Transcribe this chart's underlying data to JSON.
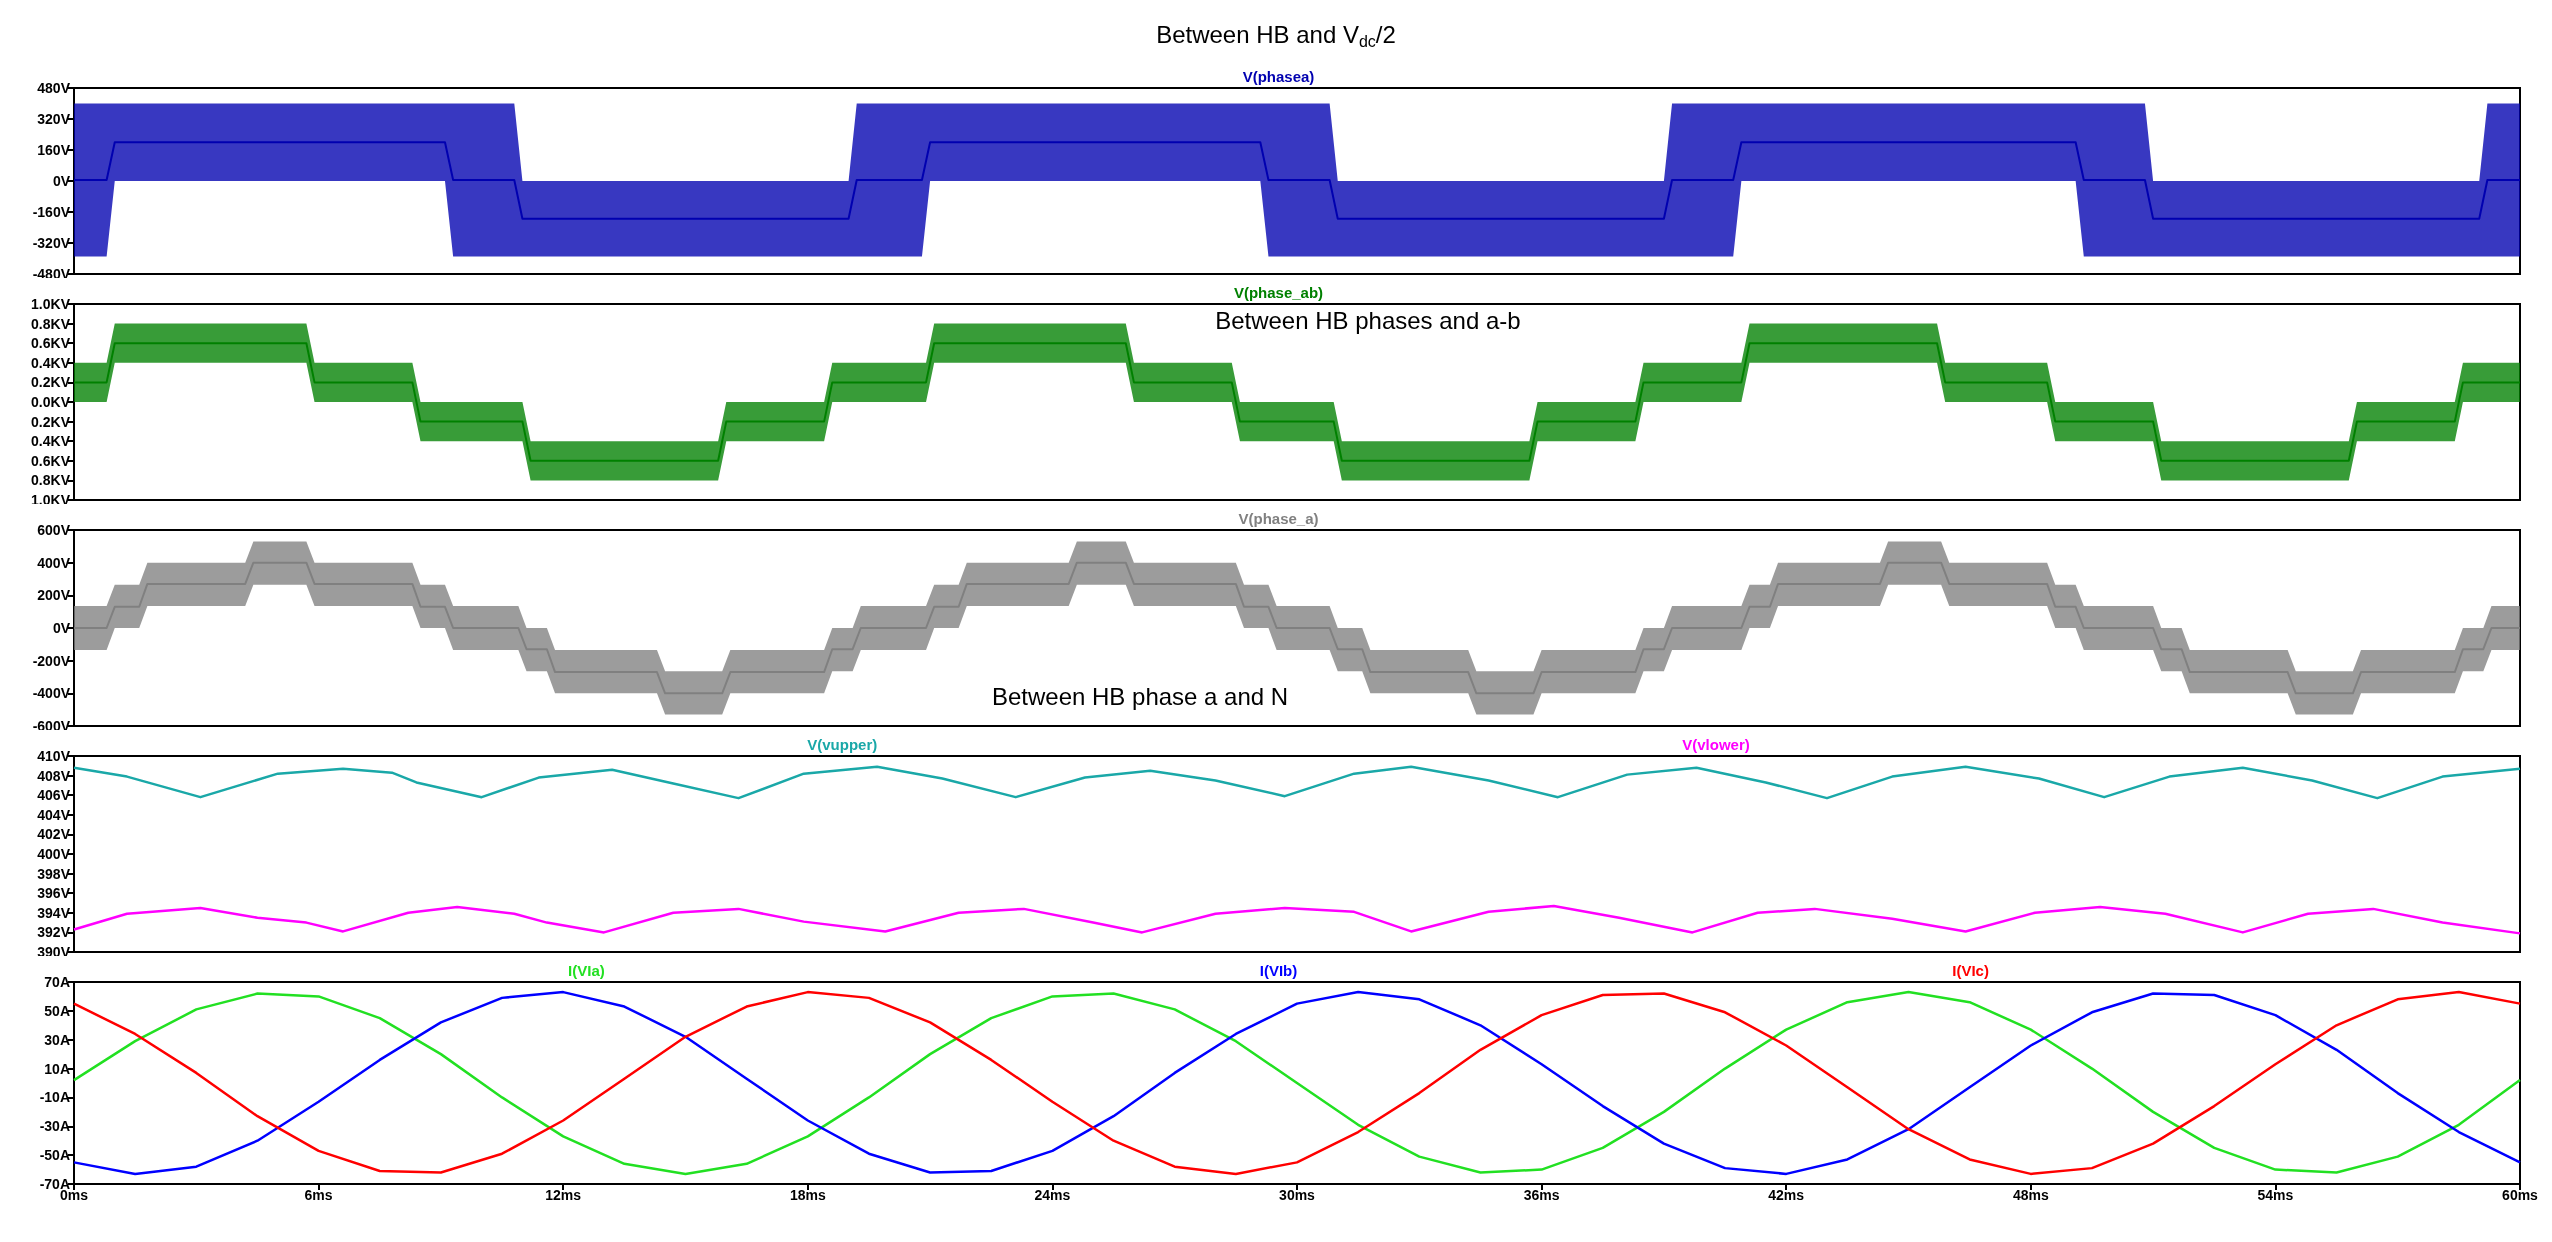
{
  "chart_data": [
    {
      "type": "line",
      "title": "Between HB and V$_{dc}$/2",
      "legend": "top",
      "tick_labels": "y",
      "xlim": [
        0,
        60
      ],
      "ylim": [
        -480,
        480
      ],
      "yticks": [
        {
          "value": -480,
          "label": "-480V"
        },
        {
          "value": -320,
          "label": "-320V"
        },
        {
          "value": -160,
          "label": "-160V"
        },
        {
          "value": 0,
          "label": "0V"
        },
        {
          "value": 160,
          "label": "160V"
        },
        {
          "value": 320,
          "label": "320V"
        },
        {
          "value": 480,
          "label": "480V"
        }
      ],
      "x": [
        0,
        0.8,
        1.0,
        9.1,
        9.3,
        10.8,
        11.0,
        19.0,
        19.2,
        20.8,
        21.0,
        29.1,
        29.3,
        30.8,
        31.0,
        39.0,
        39.2,
        40.7,
        40.9,
        49.1,
        49.3,
        50.8,
        51.0,
        59.0,
        59.2,
        60
      ],
      "series": [
        {
          "name": "V(phasea)",
          "color": "#0000b0",
          "values": [
            5,
            5,
            200,
            200,
            5,
            5,
            -195,
            -195,
            5,
            5,
            200,
            200,
            5,
            5,
            -195,
            -195,
            5,
            5,
            200,
            200,
            5,
            5,
            -195,
            -195,
            5,
            5
          ],
          "lower": [
            -390,
            -390,
            0,
            0,
            -390,
            -390,
            -390,
            -390,
            -390,
            -390,
            0,
            0,
            -390,
            -390,
            -390,
            -390,
            -390,
            -390,
            0,
            0,
            -390,
            -390,
            -390,
            -390,
            -390,
            -390
          ],
          "upper": [
            400,
            400,
            400,
            400,
            400,
            400,
            0,
            0,
            400,
            400,
            400,
            400,
            400,
            400,
            0,
            0,
            400,
            400,
            400,
            400,
            400,
            400,
            0,
            0,
            400,
            400
          ]
        }
      ]
    },
    {
      "type": "line",
      "legend": "top",
      "tick_labels": "y",
      "xlim": [
        0,
        60
      ],
      "ylim": [
        -1,
        1
      ],
      "annotations": [
        "Between HB phases and a-b"
      ],
      "yticks": [
        {
          "value": -1,
          "label": "1.0KV"
        },
        {
          "value": -0.8,
          "label": "0.8KV"
        },
        {
          "value": -0.6,
          "label": "0.6KV"
        },
        {
          "value": -0.4,
          "label": "0.4KV"
        },
        {
          "value": -0.2,
          "label": "0.2KV"
        },
        {
          "value": 0,
          "label": "0.0KV"
        },
        {
          "value": 0.2,
          "label": "0.2KV"
        },
        {
          "value": 0.4,
          "label": "0.4KV"
        },
        {
          "value": 0.6,
          "label": "0.6KV"
        },
        {
          "value": 0.8,
          "label": "0.8KV"
        },
        {
          "value": 1,
          "label": "1.0KV"
        }
      ],
      "x": [
        0,
        0.8,
        1.0,
        5.7,
        5.9,
        8.3,
        8.5,
        11.0,
        11.2,
        15.8,
        16.0,
        18.4,
        18.6,
        20.9,
        21.1,
        25.8,
        26.0,
        28.4,
        28.6,
        30.9,
        31.1,
        35.7,
        35.9,
        38.3,
        38.5,
        40.9,
        41.1,
        45.7,
        45.9,
        48.4,
        48.6,
        51.0,
        51.2,
        55.8,
        56.0,
        58.4,
        58.6,
        60
      ],
      "series": [
        {
          "name": "V(phase_ab)",
          "color": "#008000",
          "values": [
            0.2,
            0.2,
            0.6,
            0.6,
            0.2,
            0.2,
            -0.2,
            -0.2,
            -0.6,
            -0.6,
            -0.2,
            -0.2,
            0.2,
            0.2,
            0.6,
            0.6,
            0.2,
            0.2,
            -0.2,
            -0.2,
            -0.6,
            -0.6,
            -0.2,
            -0.2,
            0.2,
            0.2,
            0.6,
            0.6,
            0.2,
            0.2,
            -0.2,
            -0.2,
            -0.6,
            -0.6,
            -0.2,
            -0.2,
            0.2,
            0.2
          ],
          "lower": [
            0,
            0,
            0.4,
            0.4,
            0,
            0,
            -0.4,
            -0.4,
            -0.8,
            -0.8,
            -0.4,
            -0.4,
            0,
            0,
            0.4,
            0.4,
            0,
            0,
            -0.4,
            -0.4,
            -0.8,
            -0.8,
            -0.4,
            -0.4,
            0,
            0,
            0.4,
            0.4,
            0,
            0,
            -0.4,
            -0.4,
            -0.8,
            -0.8,
            -0.4,
            -0.4,
            0,
            0
          ],
          "upper": [
            0.4,
            0.4,
            0.8,
            0.8,
            0.4,
            0.4,
            0,
            0,
            -0.4,
            -0.4,
            0,
            0,
            0.4,
            0.4,
            0.8,
            0.8,
            0.4,
            0.4,
            0,
            0,
            -0.4,
            -0.4,
            0,
            0,
            0.4,
            0.4,
            0.8,
            0.8,
            0.4,
            0.4,
            0,
            0,
            -0.4,
            -0.4,
            0,
            0,
            0.4,
            0.4
          ]
        }
      ]
    },
    {
      "type": "line",
      "legend": "top",
      "tick_labels": "y",
      "xlim": [
        0,
        60
      ],
      "ylim": [
        -600,
        600
      ],
      "annotations": [
        "Between HB phase a and N"
      ],
      "yticks": [
        {
          "value": -600,
          "label": "-600V"
        },
        {
          "value": -400,
          "label": "-400V"
        },
        {
          "value": -200,
          "label": "-200V"
        },
        {
          "value": 0,
          "label": "0V"
        },
        {
          "value": 200,
          "label": "200V"
        },
        {
          "value": 400,
          "label": "400V"
        },
        {
          "value": 600,
          "label": "600V"
        }
      ],
      "x": [
        0,
        0.8,
        1.0,
        1.6,
        1.8,
        4.2,
        4.4,
        5.7,
        5.9,
        8.3,
        8.5,
        9.1,
        9.3,
        10.9,
        11.1,
        11.6,
        11.8,
        14.3,
        14.5,
        15.9,
        16.1,
        18.4,
        18.6,
        19.1,
        19.3,
        20.9,
        21.1,
        21.7,
        21.9,
        24.4,
        24.6,
        25.8,
        26.0,
        28.5,
        28.7,
        29.3,
        29.5,
        30.8,
        31.0,
        31.6,
        31.8,
        34.2,
        34.4,
        35.8,
        36.0,
        38.3,
        38.5,
        39.0,
        39.2,
        40.9,
        41.1,
        41.6,
        41.8,
        44.3,
        44.5,
        45.8,
        46.0,
        48.4,
        48.6,
        49.1,
        49.3,
        51.0,
        51.2,
        51.7,
        51.9,
        54.3,
        54.5,
        55.9,
        56.1,
        58.4,
        58.6,
        59.1,
        59.3,
        60
      ],
      "series": [
        {
          "name": "V(phase_a)",
          "color": "#808080",
          "values": [
            0,
            0,
            130,
            130,
            270,
            270,
            400,
            400,
            270,
            270,
            130,
            130,
            0,
            0,
            -130,
            -130,
            -270,
            -270,
            -400,
            -400,
            -270,
            -270,
            -130,
            -130,
            0,
            0,
            130,
            130,
            270,
            270,
            400,
            400,
            270,
            270,
            130,
            130,
            0,
            0,
            -130,
            -130,
            -270,
            -270,
            -400,
            -400,
            -270,
            -270,
            -130,
            -130,
            0,
            0,
            130,
            130,
            270,
            270,
            400,
            400,
            270,
            270,
            130,
            130,
            0,
            0,
            -130,
            -130,
            -270,
            -270,
            -400,
            -400,
            -270,
            -270,
            -130,
            -130,
            0,
            0
          ],
          "lower": [
            -135,
            -135,
            0,
            0,
            135,
            135,
            265,
            265,
            135,
            135,
            0,
            0,
            -135,
            -135,
            -265,
            -265,
            -400,
            -400,
            -530,
            -530,
            -400,
            -400,
            -265,
            -265,
            -135,
            -135,
            0,
            0,
            135,
            135,
            265,
            265,
            135,
            135,
            0,
            0,
            -135,
            -135,
            -265,
            -265,
            -400,
            -400,
            -530,
            -530,
            -400,
            -400,
            -265,
            -265,
            -135,
            -135,
            0,
            0,
            135,
            135,
            265,
            265,
            135,
            135,
            0,
            0,
            -135,
            -135,
            -265,
            -265,
            -400,
            -400,
            -530,
            -530,
            -400,
            -400,
            -265,
            -265,
            -135,
            -135
          ],
          "upper": [
            135,
            135,
            265,
            265,
            400,
            400,
            530,
            530,
            400,
            400,
            265,
            265,
            135,
            135,
            0,
            0,
            -135,
            -135,
            -265,
            -265,
            -135,
            -135,
            0,
            0,
            135,
            135,
            265,
            265,
            400,
            400,
            530,
            530,
            400,
            400,
            265,
            265,
            135,
            135,
            0,
            0,
            -135,
            -135,
            -265,
            -265,
            -135,
            -135,
            0,
            0,
            135,
            135,
            265,
            265,
            400,
            400,
            530,
            530,
            400,
            400,
            265,
            265,
            135,
            135,
            0,
            0,
            -135,
            -135,
            -265,
            -265,
            -135,
            -135,
            0,
            0,
            135,
            135
          ]
        }
      ]
    },
    {
      "type": "line",
      "legend": "top",
      "tick_labels": "y",
      "xlim": [
        0,
        60
      ],
      "ylim": [
        390,
        410
      ],
      "yticks": [
        {
          "value": 390,
          "label": "390V"
        },
        {
          "value": 392,
          "label": "392V"
        },
        {
          "value": 394,
          "label": "394V"
        },
        {
          "value": 396,
          "label": "396V"
        },
        {
          "value": 398,
          "label": "398V"
        },
        {
          "value": 400,
          "label": "400V"
        },
        {
          "value": 402,
          "label": "402V"
        },
        {
          "value": 404,
          "label": "404V"
        },
        {
          "value": 406,
          "label": "406V"
        },
        {
          "value": 408,
          "label": "408V"
        },
        {
          "value": 410,
          "label": "410V"
        }
      ],
      "series": [
        {
          "name": "V(vupper)",
          "color": "#1aa8a8",
          "x": [
            0,
            1.3,
            3.1,
            5.0,
            6.6,
            7.8,
            8.4,
            10.0,
            11.4,
            13.2,
            14.7,
            16.3,
            17.9,
            19.7,
            21.3,
            23.1,
            24.8,
            26.4,
            28.0,
            29.7,
            31.4,
            32.8,
            34.7,
            36.4,
            38.1,
            39.8,
            41.5,
            43.0,
            44.6,
            46.4,
            48.2,
            49.8,
            51.4,
            53.2,
            54.9,
            56.5,
            58.1,
            60
          ],
          "values": [
            408.8,
            407.9,
            405.8,
            408.2,
            408.7,
            408.3,
            407.3,
            405.8,
            407.8,
            408.6,
            407.2,
            405.7,
            408.2,
            408.9,
            407.7,
            405.8,
            407.8,
            408.5,
            407.5,
            405.9,
            408.2,
            408.9,
            407.5,
            405.8,
            408.1,
            408.8,
            407.3,
            405.7,
            407.9,
            408.9,
            407.7,
            405.8,
            407.9,
            408.8,
            407.5,
            405.7,
            407.9,
            408.7
          ]
        },
        {
          "name": "V(vlower)",
          "color": "#ff00ff",
          "x": [
            0,
            1.3,
            3.1,
            4.5,
            5.7,
            6.6,
            8.2,
            9.4,
            10.8,
            11.6,
            13.0,
            14.7,
            16.3,
            17.9,
            19.9,
            21.7,
            23.3,
            25.0,
            26.2,
            28.0,
            29.7,
            31.4,
            32.8,
            34.7,
            36.3,
            37.9,
            39.7,
            41.3,
            42.7,
            44.6,
            46.4,
            48.1,
            49.7,
            51.3,
            53.2,
            54.8,
            56.4,
            58.1,
            60
          ],
          "values": [
            392.3,
            393.9,
            394.5,
            393.5,
            393.0,
            392.1,
            394.0,
            394.6,
            393.9,
            393.0,
            392.0,
            394.0,
            394.4,
            393.1,
            392.1,
            394.0,
            394.4,
            393.0,
            392.0,
            393.9,
            394.5,
            394.1,
            392.1,
            394.1,
            394.7,
            393.5,
            392.0,
            394.0,
            394.4,
            393.4,
            392.1,
            394.0,
            394.6,
            393.9,
            392.0,
            393.9,
            394.4,
            393.0,
            391.9
          ]
        }
      ]
    },
    {
      "type": "line",
      "legend": "top",
      "xlim": [
        0,
        60
      ],
      "ylim": [
        -70,
        70
      ],
      "xticks": [
        {
          "value": 0,
          "label": "0ms"
        },
        {
          "value": 6,
          "label": "6ms"
        },
        {
          "value": 12,
          "label": "12ms"
        },
        {
          "value": 18,
          "label": "18ms"
        },
        {
          "value": 24,
          "label": "24ms"
        },
        {
          "value": 30,
          "label": "30ms"
        },
        {
          "value": 36,
          "label": "36ms"
        },
        {
          "value": 42,
          "label": "42ms"
        },
        {
          "value": 48,
          "label": "48ms"
        },
        {
          "value": 54,
          "label": "54ms"
        },
        {
          "value": 60,
          "label": "60ms"
        }
      ],
      "yticks": [
        {
          "value": -70,
          "label": "-70A"
        },
        {
          "value": -50,
          "label": "-50A"
        },
        {
          "value": -30,
          "label": "-30A"
        },
        {
          "value": -10,
          "label": "-10A"
        },
        {
          "value": 10,
          "label": "10A"
        },
        {
          "value": 30,
          "label": "30A"
        },
        {
          "value": 50,
          "label": "50A"
        },
        {
          "value": 70,
          "label": "70A"
        }
      ],
      "x": [
        0,
        1.5,
        3,
        4.5,
        6,
        7.5,
        9,
        10.5,
        12,
        13.5,
        15,
        16.5,
        18,
        19.5,
        21,
        22.5,
        24,
        25.5,
        27,
        28.5,
        30,
        31.5,
        33,
        34.5,
        36,
        37.5,
        39,
        40.5,
        42,
        43.5,
        45,
        46.5,
        48,
        49.5,
        51,
        52.5,
        54,
        55.5,
        57,
        58.5,
        60
      ],
      "series": [
        {
          "name": "I(VIa)",
          "color": "#22e022",
          "values": [
            2,
            29,
            51,
            62,
            60,
            45,
            20,
            -10,
            -37,
            -56,
            -63,
            -56,
            -37,
            -10,
            20,
            45,
            60,
            62,
            51,
            29,
            0,
            -29,
            -51,
            -62,
            -60,
            -45,
            -20,
            10,
            37,
            56,
            63,
            56,
            37,
            10,
            -20,
            -45,
            -60,
            -62,
            -51,
            -29,
            2
          ]
        },
        {
          "name": "I(VIb)",
          "color": "#0000ff",
          "values": [
            -55,
            -63,
            -58,
            -40,
            -13,
            16,
            42,
            59,
            63,
            53,
            32,
            3,
            -26,
            -49,
            -62,
            -61,
            -47,
            -23,
            7,
            34,
            55,
            63,
            58,
            40,
            13,
            -16,
            -42,
            -59,
            -63,
            -53,
            -32,
            -3,
            26,
            49,
            62,
            61,
            47,
            23,
            -7,
            -34,
            -55
          ]
        },
        {
          "name": "I(VIc)",
          "color": "#ff0000",
          "values": [
            55,
            34,
            7,
            -23,
            -47,
            -61,
            -62,
            -49,
            -26,
            3,
            32,
            53,
            63,
            59,
            42,
            16,
            -13,
            -40,
            -58,
            -63,
            -55,
            -34,
            -7,
            23,
            47,
            61,
            62,
            49,
            26,
            -3,
            -32,
            -53,
            -63,
            -59,
            -42,
            -16,
            13,
            40,
            58,
            63,
            55
          ]
        }
      ]
    }
  ]
}
